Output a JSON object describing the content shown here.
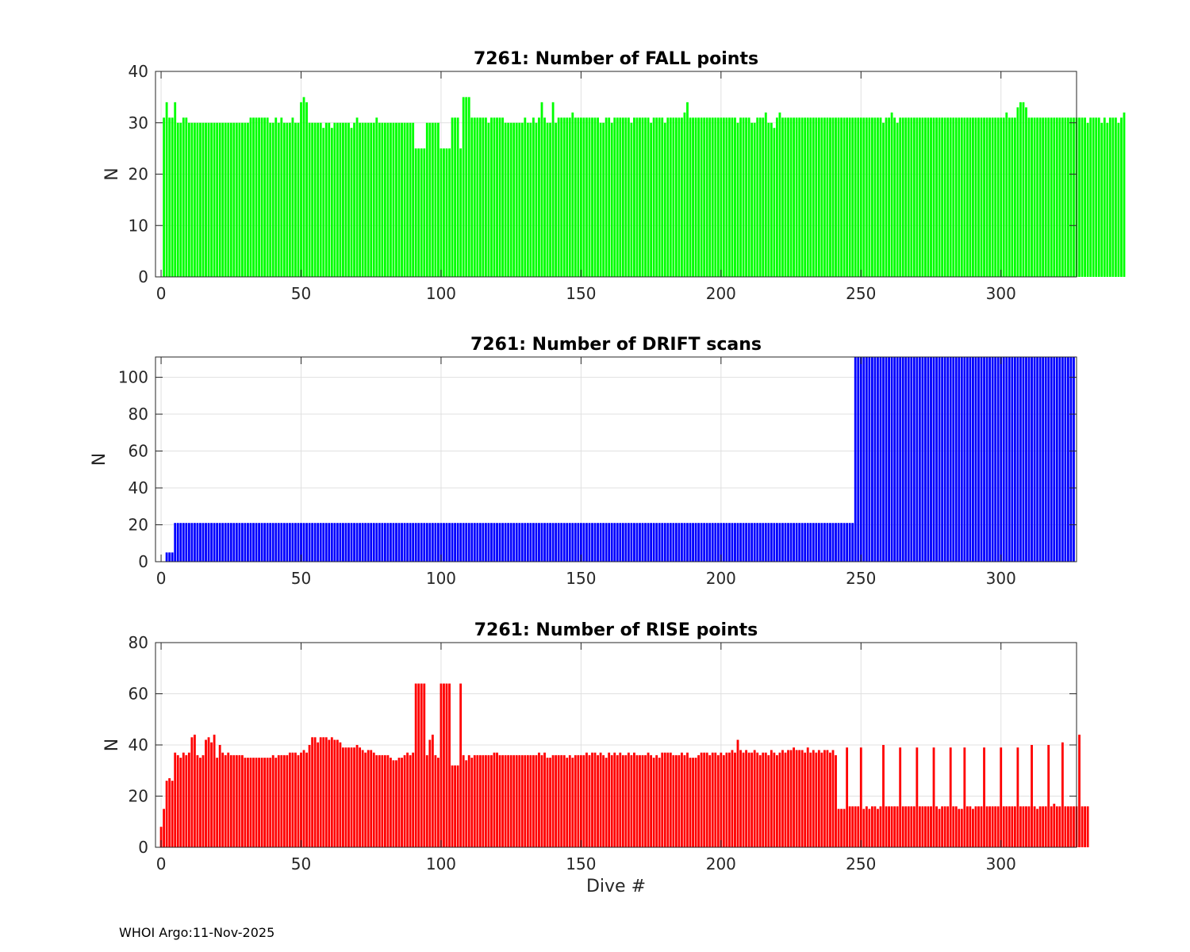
{
  "footer": "WHOI Argo:11-Nov-2025",
  "chart_data": [
    {
      "type": "bar",
      "title": "7261: Number of FALL points",
      "xlabel": "",
      "ylabel": "N",
      "xlim": [
        -2,
        327
      ],
      "ylim": [
        0,
        40
      ],
      "xticks": [
        0,
        50,
        100,
        150,
        200,
        250,
        300
      ],
      "yticks": [
        0,
        10,
        20,
        30,
        40
      ],
      "grid": true,
      "color": "#00ff00",
      "x_start": 1,
      "values": [
        31,
        34,
        31,
        31,
        34,
        30,
        30,
        31,
        31,
        30,
        30,
        30,
        30,
        30,
        30,
        30,
        30,
        30,
        30,
        30,
        30,
        30,
        30,
        30,
        30,
        30,
        30,
        30,
        30,
        30,
        30,
        31,
        31,
        31,
        31,
        31,
        31,
        31,
        30,
        30,
        31,
        30,
        31,
        30,
        30,
        30,
        31,
        30,
        30,
        34,
        35,
        34,
        30,
        30,
        30,
        30,
        30,
        29,
        30,
        30,
        29,
        30,
        30,
        30,
        30,
        30,
        30,
        29,
        30,
        31,
        30,
        30,
        30,
        30,
        30,
        30,
        31,
        30,
        30,
        30,
        30,
        30,
        30,
        30,
        30,
        30,
        30,
        30,
        30,
        30,
        25,
        25,
        25,
        25,
        30,
        30,
        30,
        30,
        30,
        25,
        25,
        25,
        25,
        31,
        31,
        31,
        25,
        35,
        35,
        35,
        31,
        31,
        31,
        31,
        31,
        31,
        30,
        31,
        31,
        31,
        31,
        31,
        30,
        30,
        30,
        30,
        30,
        30,
        30,
        31,
        30,
        30,
        31,
        30,
        31,
        34,
        31,
        30,
        30,
        34,
        30,
        31,
        31,
        31,
        31,
        31,
        32,
        31,
        31,
        31,
        31,
        31,
        31,
        31,
        31,
        31,
        30,
        30,
        31,
        31,
        30,
        31,
        31,
        31,
        31,
        31,
        31,
        30,
        31,
        31,
        31,
        31,
        31,
        31,
        30,
        31,
        31,
        31,
        31,
        30,
        31,
        31,
        31,
        31,
        31,
        31,
        32,
        34,
        31,
        31,
        31,
        31,
        31,
        31,
        31,
        31,
        31,
        31,
        31,
        31,
        31,
        31,
        31,
        31,
        31,
        30,
        31,
        31,
        31,
        31,
        30,
        30,
        31,
        31,
        31,
        32,
        30,
        30,
        29,
        31,
        32,
        31,
        31,
        31,
        31,
        31,
        31,
        31,
        31,
        31,
        31,
        31,
        31,
        31,
        31,
        31,
        31,
        31,
        31,
        31,
        31,
        31,
        31,
        31,
        31,
        31,
        31,
        31,
        31,
        31,
        31,
        31,
        31,
        31,
        31,
        31,
        31,
        30,
        31,
        31,
        32,
        31,
        30,
        31,
        31,
        31,
        31,
        31,
        31,
        31,
        31,
        31,
        31,
        31,
        31,
        31,
        31,
        31,
        31,
        31,
        31,
        31,
        31,
        31,
        31,
        31,
        31,
        31,
        31,
        31,
        31,
        31,
        31,
        31,
        31,
        31,
        31,
        31,
        31,
        31,
        31,
        32,
        31,
        31,
        31,
        33,
        34,
        34,
        33,
        31,
        31,
        31,
        31,
        31,
        31,
        31,
        31,
        31,
        31,
        31,
        31,
        31,
        31,
        31,
        31,
        31,
        31,
        31,
        31,
        31,
        30,
        31,
        31,
        31,
        31,
        30,
        31,
        30,
        31,
        31,
        31,
        30,
        31,
        32
      ]
    },
    {
      "type": "bar",
      "title": "7261: Number of DRIFT scans",
      "xlabel": "",
      "ylabel": "N",
      "xlim": [
        -2,
        327
      ],
      "ylim": [
        0,
        111
      ],
      "xticks": [
        0,
        50,
        100,
        150,
        200,
        250,
        300
      ],
      "yticks": [
        0,
        20,
        40,
        60,
        80,
        100
      ],
      "grid": true,
      "color": "#0000ff",
      "segments": [
        {
          "from": 1,
          "to": 1,
          "value": 0
        },
        {
          "from": 2,
          "to": 4,
          "value": 5
        },
        {
          "from": 5,
          "to": 247,
          "value": 21
        },
        {
          "from": 248,
          "to": 326,
          "value": 111
        }
      ]
    },
    {
      "type": "bar",
      "title": "7261: Number of RISE points",
      "xlabel": "Dive #",
      "ylabel": "N",
      "xlim": [
        -2,
        327
      ],
      "ylim": [
        0,
        80
      ],
      "xticks": [
        0,
        50,
        100,
        150,
        200,
        250,
        300
      ],
      "yticks": [
        0,
        20,
        40,
        60,
        80
      ],
      "grid": true,
      "color": "#ff0000",
      "x_start": 0,
      "values": [
        8,
        15,
        26,
        27,
        26,
        37,
        36,
        35,
        37,
        36,
        37,
        43,
        44,
        36,
        35,
        36,
        42,
        43,
        41,
        44,
        35,
        40,
        37,
        36,
        37,
        36,
        36,
        36,
        36,
        36,
        35,
        35,
        35,
        35,
        35,
        35,
        35,
        35,
        35,
        35,
        36,
        35,
        36,
        36,
        36,
        36,
        37,
        37,
        37,
        36,
        37,
        38,
        37,
        40,
        43,
        43,
        41,
        43,
        43,
        43,
        42,
        43,
        42,
        42,
        41,
        39,
        39,
        39,
        39,
        39,
        40,
        39,
        38,
        37,
        38,
        38,
        37,
        36,
        36,
        36,
        36,
        36,
        35,
        34,
        34,
        35,
        35,
        36,
        37,
        36,
        37,
        64,
        64,
        64,
        64,
        36,
        42,
        44,
        36,
        35,
        64,
        64,
        64,
        64,
        32,
        32,
        32,
        64,
        36,
        34,
        36,
        35,
        36,
        36,
        36,
        36,
        36,
        36,
        36,
        37,
        37,
        36,
        36,
        36,
        36,
        36,
        36,
        36,
        36,
        36,
        36,
        36,
        36,
        36,
        36,
        37,
        36,
        37,
        35,
        35,
        36,
        36,
        36,
        36,
        36,
        35,
        36,
        35,
        36,
        36,
        36,
        36,
        37,
        36,
        37,
        37,
        36,
        37,
        36,
        35,
        37,
        36,
        37,
        36,
        37,
        36,
        36,
        37,
        36,
        37,
        36,
        36,
        36,
        36,
        37,
        36,
        35,
        36,
        35,
        37,
        37,
        37,
        37,
        36,
        36,
        36,
        37,
        36,
        37,
        35,
        35,
        35,
        36,
        37,
        37,
        37,
        36,
        37,
        37,
        36,
        37,
        36,
        37,
        37,
        38,
        37,
        42,
        38,
        37,
        38,
        37,
        37,
        38,
        37,
        36,
        37,
        37,
        36,
        38,
        37,
        36,
        37,
        38,
        37,
        38,
        38,
        39,
        38,
        38,
        38,
        37,
        39,
        37,
        38,
        37,
        38,
        37,
        38,
        38,
        37,
        38,
        36,
        15,
        15,
        15,
        39,
        16,
        16,
        16,
        16,
        39,
        15,
        16,
        15,
        16,
        16,
        15,
        16,
        40,
        16,
        16,
        16,
        16,
        16,
        39,
        16,
        16,
        16,
        16,
        16,
        39,
        16,
        16,
        16,
        16,
        16,
        39,
        16,
        15,
        16,
        16,
        16,
        39,
        16,
        16,
        15,
        15,
        39,
        16,
        16,
        15,
        16,
        16,
        16,
        39,
        16,
        16,
        16,
        16,
        16,
        39,
        16,
        16,
        16,
        16,
        16,
        39,
        16,
        16,
        16,
        16,
        40,
        16,
        15,
        16,
        16,
        16,
        40,
        16,
        17,
        16,
        16,
        41,
        16,
        16,
        16,
        16,
        16,
        44,
        16,
        16,
        16
      ]
    }
  ]
}
